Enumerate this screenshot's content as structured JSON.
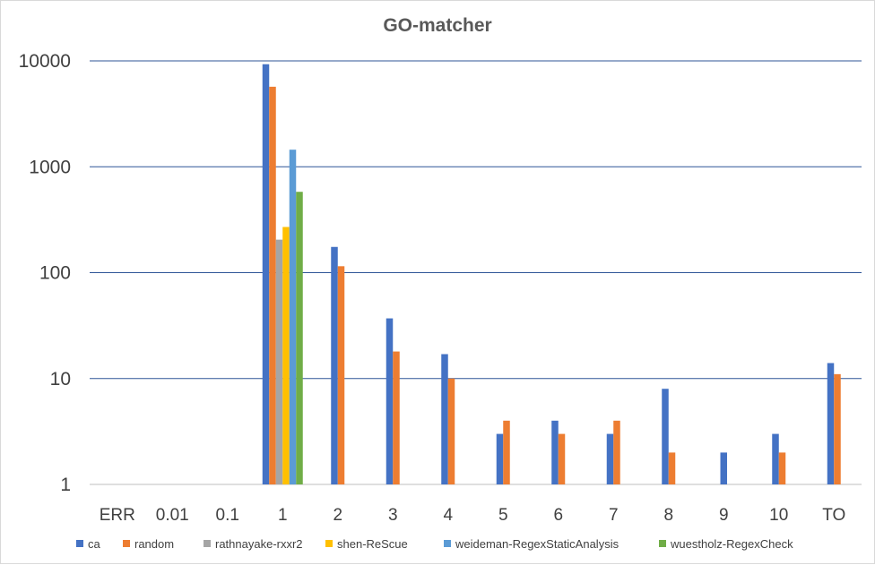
{
  "chart_data": {
    "type": "bar",
    "title": "GO-matcher",
    "xlabel": "",
    "ylabel": "",
    "yscale": "log",
    "ylim": [
      1,
      10000
    ],
    "yticks": [
      1,
      10,
      100,
      1000,
      10000
    ],
    "grid": true,
    "legend": "bottom",
    "categories": [
      "ERR",
      "0.01",
      "0.1",
      "1",
      "2",
      "3",
      "4",
      "5",
      "6",
      "7",
      "8",
      "9",
      "10",
      "TO"
    ],
    "series": [
      {
        "name": "ca",
        "color": "#4472c4",
        "values": [
          null,
          null,
          null,
          9300,
          175,
          37,
          17,
          3,
          4,
          3,
          8,
          2,
          3,
          14
        ]
      },
      {
        "name": "random",
        "color": "#ed7d31",
        "values": [
          null,
          null,
          null,
          5700,
          115,
          18,
          10,
          4,
          3,
          4,
          2,
          null,
          2,
          11
        ]
      },
      {
        "name": "rathnayake-rxxr2",
        "color": "#a5a5a5",
        "values": [
          null,
          null,
          null,
          205,
          null,
          null,
          null,
          null,
          null,
          null,
          null,
          null,
          null,
          null
        ]
      },
      {
        "name": "shen-ReScue",
        "color": "#ffc000",
        "values": [
          null,
          null,
          null,
          270,
          null,
          null,
          null,
          null,
          null,
          null,
          null,
          null,
          null,
          null
        ]
      },
      {
        "name": "weideman-RegexStaticAnalysis",
        "color": "#5b9bd5",
        "values": [
          null,
          null,
          null,
          1450,
          null,
          null,
          null,
          null,
          null,
          null,
          null,
          null,
          null,
          null
        ]
      },
      {
        "name": "wuestholz-RegexCheck",
        "color": "#70ad47",
        "values": [
          null,
          null,
          null,
          580,
          null,
          null,
          null,
          null,
          null,
          null,
          null,
          null,
          null,
          null
        ]
      }
    ]
  }
}
